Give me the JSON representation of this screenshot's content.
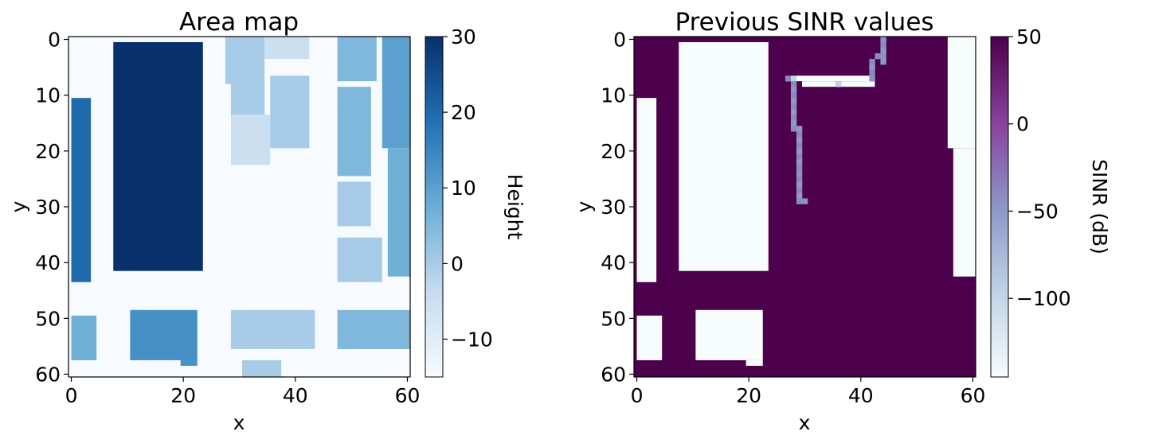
{
  "chart_data": [
    {
      "type": "heatmap",
      "title": "Area map",
      "xlabel": "x",
      "ylabel": "y",
      "xlim": [
        0,
        61
      ],
      "ylim": [
        61,
        0
      ],
      "xticks": [
        "0",
        "20",
        "40",
        "60"
      ],
      "yticks": [
        "0",
        "10",
        "20",
        "30",
        "40",
        "50",
        "60"
      ],
      "colormap": "Blues",
      "colorbar": {
        "label": "Height",
        "range": [
          -15,
          30
        ],
        "ticks": [
          "30",
          "20",
          "10",
          "0",
          "−10"
        ]
      },
      "background_value": -15,
      "regions": [
        {
          "x0": 0,
          "y0": 10.5,
          "x1": 3.5,
          "y1": 43.5,
          "value": 20
        },
        {
          "x0": 7.5,
          "y0": 0.5,
          "x1": 23.5,
          "y1": 41.5,
          "value": 30
        },
        {
          "x0": 27.5,
          "y0": -0.5,
          "x1": 34.5,
          "y1": 8,
          "value": 0
        },
        {
          "x0": 34.5,
          "y0": -0.5,
          "x1": 42.5,
          "y1": 3.5,
          "value": -5
        },
        {
          "x0": 28.5,
          "y0": 8,
          "x1": 34.5,
          "y1": 13.5,
          "value": 0
        },
        {
          "x0": 28.5,
          "y0": 13.5,
          "x1": 35.5,
          "y1": 22.5,
          "value": -5
        },
        {
          "x0": 35.5,
          "y0": 6.5,
          "x1": 42.5,
          "y1": 19.5,
          "value": 0
        },
        {
          "x0": 47.5,
          "y0": -0.5,
          "x1": 54.5,
          "y1": 7.5,
          "value": 5
        },
        {
          "x0": 47.5,
          "y0": 8.5,
          "x1": 53.5,
          "y1": 24.5,
          "value": 5
        },
        {
          "x0": 47.5,
          "y0": 25.5,
          "x1": 53.5,
          "y1": 33.5,
          "value": 0
        },
        {
          "x0": 47.5,
          "y0": 35.5,
          "x1": 55.5,
          "y1": 43.5,
          "value": 0
        },
        {
          "x0": 55.5,
          "y0": -0.5,
          "x1": 60.5,
          "y1": 19.5,
          "value": 10
        },
        {
          "x0": 56.5,
          "y0": 19.5,
          "x1": 60.5,
          "y1": 42.5,
          "value": 7
        },
        {
          "x0": 0,
          "y0": 49.5,
          "x1": 4.5,
          "y1": 57.5,
          "value": 7
        },
        {
          "x0": 10.5,
          "y0": 48.5,
          "x1": 22.5,
          "y1": 57.5,
          "value": 13
        },
        {
          "x0": 19.5,
          "y0": 57.5,
          "x1": 22.5,
          "y1": 58.5,
          "value": 13
        },
        {
          "x0": 28.5,
          "y0": 48.5,
          "x1": 43.5,
          "y1": 55.5,
          "value": 0
        },
        {
          "x0": 47.5,
          "y0": 48.5,
          "x1": 60.5,
          "y1": 55.5,
          "value": 5
        },
        {
          "x0": 30.5,
          "y0": 57.5,
          "x1": 37.5,
          "y1": 61,
          "value": 0
        }
      ]
    },
    {
      "type": "heatmap",
      "title": "Previous SINR values",
      "xlabel": "x",
      "ylabel": "y",
      "xlim": [
        0,
        61
      ],
      "ylim": [
        61,
        0
      ],
      "xticks": [
        "0",
        "20",
        "40",
        "60"
      ],
      "yticks": [
        "0",
        "10",
        "20",
        "30",
        "40",
        "50",
        "60"
      ],
      "colormap": "BuPu",
      "colorbar": {
        "label": "SINR (dB)",
        "range": [
          -145,
          50
        ],
        "ticks": [
          "50",
          "0",
          "−50",
          "−100"
        ]
      },
      "background_value": 50,
      "regions": [
        {
          "x0": 0,
          "y0": 10.5,
          "x1": 3.5,
          "y1": 43.5,
          "value": -145
        },
        {
          "x0": 7.5,
          "y0": 0.5,
          "x1": 23.5,
          "y1": 41.5,
          "value": -145
        },
        {
          "x0": 55.5,
          "y0": -0.5,
          "x1": 60.5,
          "y1": 19.5,
          "value": -145
        },
        {
          "x0": 56.5,
          "y0": 19.5,
          "x1": 60.5,
          "y1": 42.5,
          "value": -145
        },
        {
          "x0": 0,
          "y0": 49.5,
          "x1": 4.5,
          "y1": 57.5,
          "value": -145
        },
        {
          "x0": 10.5,
          "y0": 48.5,
          "x1": 22.5,
          "y1": 57.5,
          "value": -145
        },
        {
          "x0": 19.5,
          "y0": 57.5,
          "x1": 22.5,
          "y1": 58.5,
          "value": -145
        },
        {
          "x0": 28.5,
          "y0": 6.5,
          "x1": 42.5,
          "y1": 7.5,
          "value": -145
        },
        {
          "x0": 29.5,
          "y0": 7.5,
          "x1": 35.5,
          "y1": 8.5,
          "value": -145
        },
        {
          "x0": 36.5,
          "y0": 7.5,
          "x1": 42.5,
          "y1": 8.5,
          "value": -145
        }
      ],
      "trajectory": [
        {
          "x": 27,
          "y": 7,
          "value": -40
        },
        {
          "x": 28,
          "y": 7,
          "value": -100
        },
        {
          "x": 28,
          "y": 8,
          "value": -40
        },
        {
          "x": 28,
          "y": 9,
          "value": -50
        },
        {
          "x": 28,
          "y": 10,
          "value": -40
        },
        {
          "x": 28,
          "y": 11,
          "value": -50
        },
        {
          "x": 28,
          "y": 12,
          "value": -40
        },
        {
          "x": 28,
          "y": 13,
          "value": -50
        },
        {
          "x": 28,
          "y": 14,
          "value": -40
        },
        {
          "x": 28,
          "y": 15,
          "value": -50
        },
        {
          "x": 28,
          "y": 16,
          "value": -40
        },
        {
          "x": 29,
          "y": 16,
          "value": -50
        },
        {
          "x": 29,
          "y": 17,
          "value": -40
        },
        {
          "x": 29,
          "y": 18,
          "value": -50
        },
        {
          "x": 29,
          "y": 19,
          "value": -40
        },
        {
          "x": 29,
          "y": 20,
          "value": -50
        },
        {
          "x": 29,
          "y": 21,
          "value": -40
        },
        {
          "x": 29,
          "y": 22,
          "value": -50
        },
        {
          "x": 29,
          "y": 23,
          "value": -40
        },
        {
          "x": 29,
          "y": 24,
          "value": -45
        },
        {
          "x": 29,
          "y": 25,
          "value": -40
        },
        {
          "x": 29,
          "y": 26,
          "value": -50
        },
        {
          "x": 29,
          "y": 27,
          "value": -40
        },
        {
          "x": 29,
          "y": 28,
          "value": -50
        },
        {
          "x": 29,
          "y": 29,
          "value": -40
        },
        {
          "x": 30,
          "y": 29,
          "value": -45
        },
        {
          "x": 36,
          "y": 8,
          "value": -100
        },
        {
          "x": 42,
          "y": 4,
          "value": -40
        },
        {
          "x": 42,
          "y": 5,
          "value": -50
        },
        {
          "x": 42,
          "y": 6,
          "value": -40
        },
        {
          "x": 42,
          "y": 7,
          "value": -45
        },
        {
          "x": 43,
          "y": 3,
          "value": -40
        },
        {
          "x": 44,
          "y": 3,
          "value": -45
        },
        {
          "x": 44,
          "y": 4,
          "value": -50
        },
        {
          "x": 44,
          "y": 0,
          "value": -45
        },
        {
          "x": 44,
          "y": 1,
          "value": -40
        },
        {
          "x": 44,
          "y": 2,
          "value": -50
        }
      ]
    }
  ]
}
